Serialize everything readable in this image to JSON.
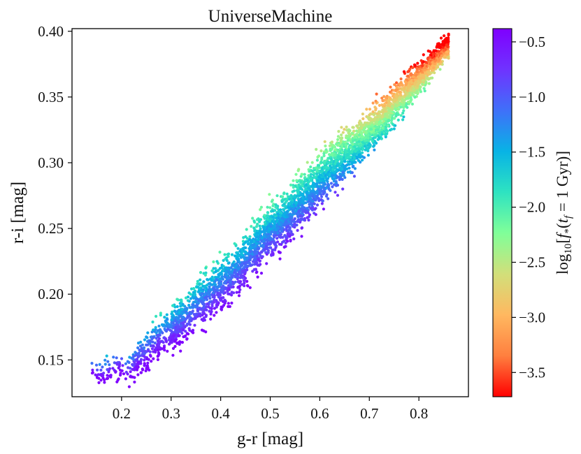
{
  "chart_data": {
    "type": "scatter",
    "title": "UniverseMachine",
    "xlabel": "g-r [mag]",
    "ylabel": "r-i [mag]",
    "xlim": [
      0.1,
      0.9
    ],
    "ylim": [
      0.122,
      0.402
    ],
    "xticks": [
      0.2,
      0.3,
      0.4,
      0.5,
      0.6,
      0.7,
      0.8
    ],
    "xtick_labels": [
      "0.2",
      "0.3",
      "0.4",
      "0.5",
      "0.6",
      "0.7",
      "0.8"
    ],
    "yticks": [
      0.15,
      0.2,
      0.25,
      0.3,
      0.35,
      0.4
    ],
    "ytick_labels": [
      "0.15",
      "0.20",
      "0.25",
      "0.30",
      "0.35",
      "0.40"
    ],
    "grid": false,
    "colorbar": {
      "label": "log10[f*(tf=1 Gyr)]",
      "label_main": "log",
      "label_sub": "10",
      "label_bracket_open": "[",
      "label_f": "f",
      "label_star": "*",
      "label_paren_open": "(",
      "label_t": "t",
      "label_tsub": "f",
      "label_eq": " = 1 Gyr)]",
      "range": [
        -3.72,
        -0.38
      ],
      "ticks": [
        -0.5,
        -1.0,
        -1.5,
        -2.0,
        -2.5,
        -3.0,
        -3.5
      ],
      "tick_labels": [
        "−0.5",
        "−1.0",
        "−1.5",
        "−2.0",
        "−2.5",
        "−3.0",
        "−3.5"
      ],
      "colormap": "rainbow",
      "colormap_stops": [
        "#ff0000",
        "#ff7f3f",
        "#ffb860",
        "#d2df7a",
        "#80ff99",
        "#2ee3c1",
        "#08b3e5",
        "#3f70f9",
        "#6f33ff",
        "#7f00ff"
      ]
    },
    "series": [
      {
        "relation": "r-i ≈ 0.054 + 0.387·(g-r)",
        "x": [
          0.14,
          0.16,
          0.18,
          0.2,
          0.21,
          0.23,
          0.25,
          0.27,
          0.29,
          0.31,
          0.33,
          0.35,
          0.37,
          0.4,
          0.43,
          0.46,
          0.49,
          0.52,
          0.55,
          0.58,
          0.61,
          0.64,
          0.67,
          0.7,
          0.73,
          0.76,
          0.79,
          0.82,
          0.84,
          0.86
        ],
        "y": [
          0.142,
          0.138,
          0.141,
          0.145,
          0.138,
          0.149,
          0.155,
          0.163,
          0.17,
          0.176,
          0.181,
          0.19,
          0.197,
          0.208,
          0.218,
          0.232,
          0.244,
          0.255,
          0.267,
          0.279,
          0.291,
          0.303,
          0.313,
          0.324,
          0.334,
          0.348,
          0.361,
          0.372,
          0.381,
          0.389
        ],
        "color_value": [
          -0.55,
          -0.6,
          -0.55,
          -0.6,
          -0.7,
          -0.75,
          -0.8,
          -0.85,
          -0.95,
          -1.0,
          -1.05,
          -1.1,
          -1.1,
          -1.15,
          -1.2,
          -1.25,
          -1.3,
          -1.35,
          -1.4,
          -1.5,
          -1.6,
          -1.8,
          -2.0,
          -2.2,
          -2.4,
          -2.6,
          -2.9,
          -3.1,
          -3.3,
          -3.5
        ]
      }
    ]
  }
}
